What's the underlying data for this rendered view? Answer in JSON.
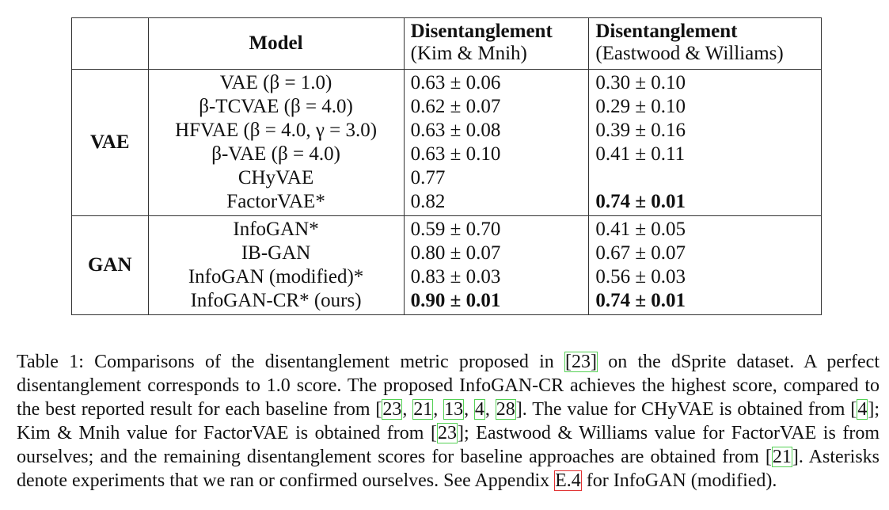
{
  "table": {
    "headers": {
      "model": "Model",
      "km_title": "Disentanglement",
      "km_sub": "(Kim & Mnih)",
      "ew_title": "Disentanglement",
      "ew_sub": "(Eastwood & Williams)"
    },
    "groups": [
      {
        "name": "VAE",
        "rows": [
          {
            "model": "VAE (β = 1.0)",
            "km": "0.63 ± 0.06",
            "ew": "0.30 ± 0.10"
          },
          {
            "model": "β-TCVAE (β = 4.0)",
            "km": "0.62 ± 0.07",
            "ew": "0.29 ± 0.10"
          },
          {
            "model": "HFVAE (β = 4.0, γ = 3.0)",
            "km": "0.63 ± 0.08",
            "ew": "0.39 ± 0.16"
          },
          {
            "model": "β-VAE (β = 4.0)",
            "km": "0.63 ± 0.10",
            "ew": "0.41 ± 0.11"
          },
          {
            "model": "CHyVAE",
            "km": "0.77",
            "ew": ""
          },
          {
            "model": "FactorVAE*",
            "km": "0.82",
            "ew": "0.74 ± 0.01"
          }
        ]
      },
      {
        "name": "GAN",
        "rows": [
          {
            "model": "InfoGAN*",
            "km": "0.59 ± 0.70",
            "ew": "0.41 ± 0.05"
          },
          {
            "model": "IB-GAN",
            "km": "0.80 ± 0.07",
            "ew": "0.67 ± 0.07"
          },
          {
            "model": "InfoGAN (modified)*",
            "km": "0.83 ± 0.03",
            "ew": "0.56 ± 0.03"
          },
          {
            "model": "InfoGAN-CR* (ours)",
            "km": "0.90 ± 0.01",
            "ew": "0.74 ± 0.01"
          }
        ]
      }
    ]
  },
  "caption": {
    "p1": "Table 1: Comparisons of the disentanglement metric proposed in ",
    "r1": "[23]",
    "p2": " on the dSprite dataset. A perfect disentanglement corresponds to 1.0 score. The proposed InfoGAN-CR achieves the highest score, compared to the best reported result for each baseline from [",
    "r2": "23",
    "s1": ", ",
    "r3": "21",
    "s2": ", ",
    "r4": "13",
    "s3": ", ",
    "r5": "4",
    "s4": ", ",
    "r6": "28",
    "p3": "]. The value for CHyVAE is obtained from [",
    "r7": "4",
    "p4": "]; Kim & Mnih value for FactorVAE is obtained from [",
    "r8": "23",
    "p5": "]; Eastwood & Williams value for FactorVAE is from ourselves; and the remaining disentanglement scores for baseline approaches are obtained from [",
    "r9": "21",
    "p6": "]. Asterisks denote experiments that we ran or confirmed ourselves. See Appendix ",
    "r10": "E.4",
    "p7": " for InfoGAN (modified)."
  }
}
